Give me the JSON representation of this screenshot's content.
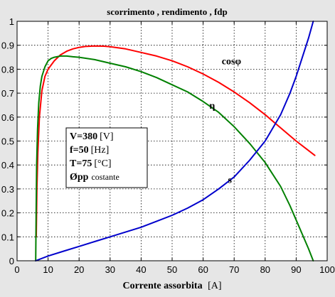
{
  "chart_data": {
    "type": "line",
    "title": "scorrimento , rendimento , fdp",
    "xlabel_main": "Corrente assorbita",
    "xlabel_unit": "[A]",
    "xlim": [
      0,
      100
    ],
    "ylim": [
      0,
      1
    ],
    "xticks": [
      0,
      10,
      20,
      30,
      40,
      50,
      60,
      70,
      80,
      90,
      100
    ],
    "yticks": [
      0,
      0.1,
      0.2,
      0.3,
      0.4,
      0.5,
      0.6,
      0.7,
      0.8,
      0.9,
      1
    ],
    "grid": true,
    "series": [
      {
        "name": "cosφ",
        "color": "#ff0000",
        "x": [
          6.2,
          6.4,
          6.7,
          7.2,
          8,
          9,
          10,
          12,
          14,
          16,
          18,
          20,
          22,
          25,
          28,
          30,
          35,
          40,
          45,
          50,
          55,
          60,
          65,
          70,
          75,
          80,
          85,
          90,
          93,
          96
        ],
        "y": [
          0.1,
          0.3,
          0.45,
          0.6,
          0.71,
          0.77,
          0.8,
          0.835,
          0.86,
          0.875,
          0.885,
          0.891,
          0.895,
          0.897,
          0.896,
          0.894,
          0.885,
          0.87,
          0.855,
          0.835,
          0.81,
          0.78,
          0.745,
          0.705,
          0.66,
          0.61,
          0.555,
          0.5,
          0.47,
          0.44
        ]
      },
      {
        "name": "η",
        "color": "#008000",
        "x": [
          6.0,
          6.15,
          6.3,
          6.6,
          7,
          7.5,
          8,
          9,
          10,
          11,
          12,
          14,
          16,
          18,
          20,
          25,
          30,
          35,
          40,
          45,
          50,
          55,
          60,
          65,
          70,
          75,
          80,
          85,
          88,
          90,
          92,
          94,
          95.5
        ],
        "y": [
          0,
          0.2,
          0.4,
          0.55,
          0.66,
          0.73,
          0.77,
          0.81,
          0.835,
          0.845,
          0.85,
          0.855,
          0.855,
          0.852,
          0.85,
          0.84,
          0.825,
          0.81,
          0.79,
          0.765,
          0.735,
          0.705,
          0.665,
          0.62,
          0.56,
          0.49,
          0.41,
          0.31,
          0.23,
          0.17,
          0.11,
          0.05,
          0.0
        ]
      },
      {
        "name": "s",
        "color": "#0000cc",
        "x": [
          6.0,
          10,
          15,
          20,
          25,
          30,
          35,
          40,
          45,
          50,
          55,
          60,
          65,
          70,
          75,
          80,
          85,
          88,
          90,
          92,
          94,
          95.5
        ],
        "y": [
          0.0,
          0.02,
          0.04,
          0.06,
          0.08,
          0.1,
          0.12,
          0.14,
          0.165,
          0.19,
          0.22,
          0.255,
          0.3,
          0.35,
          0.42,
          0.5,
          0.61,
          0.7,
          0.77,
          0.85,
          0.93,
          1.0
        ]
      }
    ],
    "labels": [
      {
        "text": "cosφ",
        "x": 66,
        "y": 0.82
      },
      {
        "text": "η",
        "x": 62,
        "y": 0.635
      },
      {
        "text": "s",
        "x": 68,
        "y": 0.325
      }
    ],
    "conditions": [
      {
        "main": "V=380",
        "unit": "[V]"
      },
      {
        "main": "f=50",
        "unit": "[Hz]"
      },
      {
        "main": "T=75",
        "unit": "[°C]"
      },
      {
        "main": "Øpp",
        "unit": "costante"
      }
    ]
  }
}
